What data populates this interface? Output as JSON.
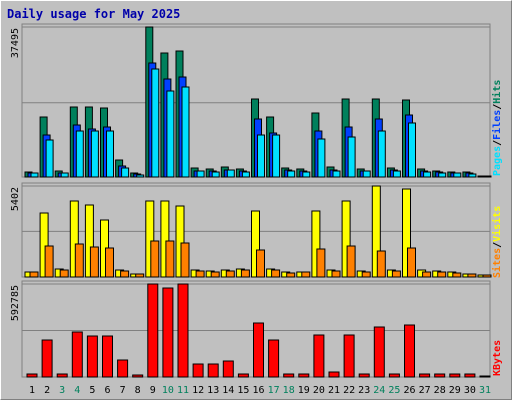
{
  "title": "Daily usage for May 2025",
  "colors": {
    "background": "#c0c0c0",
    "panel": "#c0c0c0",
    "title": "#0000aa",
    "hits": "#00805c",
    "files": "#0040ff",
    "pages": "#00e0ff",
    "visits": "#ffff00",
    "sites": "#ff8000",
    "kbytes": "#ff0000",
    "weekend": "#00805c",
    "grid": "#808080"
  },
  "legend": {
    "top": {
      "pages": "Pages",
      "files": "Files",
      "hits": "Hits",
      "sep": "/"
    },
    "middle": {
      "sites": "Sites",
      "visits": "Visits",
      "sep": "/"
    },
    "bottom": {
      "kbytes": "KBytes"
    }
  },
  "chart_data": {
    "type": "bar",
    "title": "Daily usage for May 2025",
    "categories": [
      "1",
      "2",
      "3",
      "4",
      "5",
      "6",
      "7",
      "8",
      "9",
      "10",
      "11",
      "12",
      "13",
      "14",
      "15",
      "16",
      "17",
      "18",
      "19",
      "20",
      "21",
      "22",
      "23",
      "24",
      "25",
      "26",
      "27",
      "28",
      "29",
      "30",
      "31"
    ],
    "weekend_days": [
      "3",
      "4",
      "10",
      "11",
      "17",
      "18",
      "24",
      "25",
      "31"
    ],
    "panels": [
      {
        "id": "top",
        "ymax": 37495,
        "ymax_label": "37495",
        "series": [
          {
            "name": "Hits",
            "values": [
              1300,
              15000,
              1400,
              17500,
              17500,
              17200,
              4200,
              1000,
              37495,
              31000,
              31500,
              2200,
              2100,
              2500,
              2000,
              19500,
              15000,
              2300,
              2000,
              16000,
              2400,
              19500,
              2100,
              19500,
              2300,
              19200,
              2000,
              1600,
              1300,
              1200,
              200
            ]
          },
          {
            "name": "Files",
            "values": [
              1000,
              10500,
              1100,
              13000,
              12000,
              12500,
              2800,
              700,
              28500,
              24500,
              25000,
              1600,
              1500,
              1800,
              1500,
              14500,
              11000,
              1700,
              1500,
              11500,
              1800,
              12500,
              1600,
              14500,
              1700,
              15500,
              1500,
              1200,
              1000,
              900,
              100
            ]
          },
          {
            "name": "Pages",
            "values": [
              900,
              9200,
              1000,
              11500,
              11500,
              11400,
              2300,
              600,
              27000,
              21500,
              22500,
              1400,
              1300,
              1700,
              1300,
              10500,
              10500,
              1500,
              1300,
              9500,
              1500,
              10000,
              1400,
              11500,
              1500,
              13500,
              1300,
              1000,
              900,
              800,
              100
            ]
          }
        ]
      },
      {
        "id": "middle",
        "ymax": 5402,
        "ymax_label": "5402",
        "series": [
          {
            "name": "Visits",
            "values": [
              300,
              3800,
              450,
              4500,
              4300,
              3400,
              400,
              200,
              4500,
              4500,
              4200,
              400,
              350,
              400,
              450,
              3900,
              450,
              300,
              300,
              3900,
              400,
              4500,
              350,
              5402,
              400,
              5200,
              400,
              350,
              300,
              200,
              100
            ]
          },
          {
            "name": "Sites",
            "values": [
              300,
              1850,
              400,
              1950,
              1800,
              1750,
              350,
              200,
              2150,
              2150,
              2000,
              350,
              300,
              350,
              400,
              1600,
              400,
              250,
              300,
              1650,
              350,
              1850,
              300,
              1550,
              350,
              1750,
              300,
              300,
              250,
              200,
              100
            ]
          }
        ]
      },
      {
        "id": "bottom",
        "ymax": 592785,
        "ymax_label": "592785",
        "series": [
          {
            "name": "KBytes",
            "values": [
              20000,
              236000,
              20000,
              285000,
              262000,
              264000,
              111000,
              12000,
              592785,
              568000,
              592785,
              82000,
              81000,
              100000,
              20000,
              342000,
              234000,
              20000,
              20000,
              270000,
              30000,
              270000,
              22000,
              320000,
              20000,
              330000,
              20000,
              20000,
              20000,
              20000,
              8000
            ]
          }
        ]
      }
    ]
  }
}
